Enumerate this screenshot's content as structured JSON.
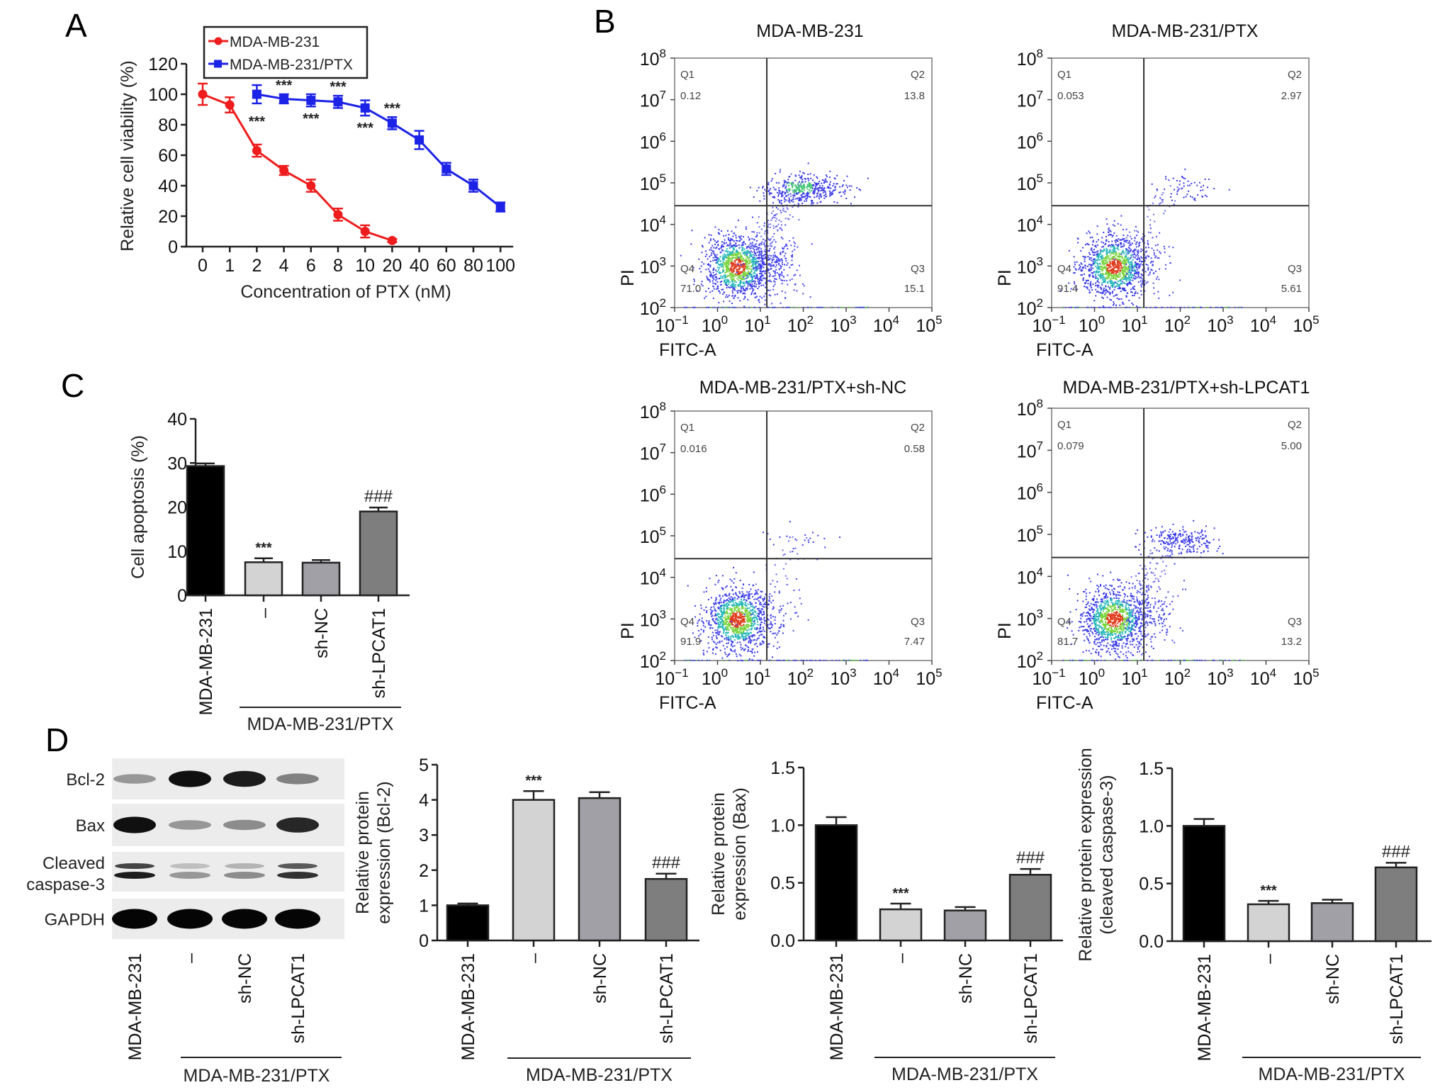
{
  "figure": {
    "panel_letters": [
      "A",
      "B",
      "C",
      "D"
    ],
    "group_bracket_label": "MDA-MB-231/PTX",
    "colors": {
      "red": "#ee1c1c",
      "blue": "#1c22e6",
      "bar_black": "#000000",
      "bar_light": "#d3d3d3",
      "bar_mid": "#a0a0a6",
      "bar_dark": "#7e7e7e"
    }
  },
  "chart_data": [
    {
      "id": "A",
      "type": "line",
      "title": "",
      "xlabel": "Concentration of PTX (nM)",
      "ylabel": "Relative cell viability (%)",
      "categories": [
        "0",
        "1",
        "2",
        "4",
        "6",
        "8",
        "10",
        "20",
        "40",
        "60",
        "80",
        "100"
      ],
      "ylim": [
        0,
        120
      ],
      "yticks": [
        0,
        20,
        40,
        60,
        80,
        100,
        120
      ],
      "legend": {
        "placement": "top",
        "entries": [
          "MDA-MB-231",
          "MDA-MB-231/PTX"
        ]
      },
      "series": [
        {
          "name": "MDA-MB-231",
          "color": "#ee1c1c",
          "marker": "circle",
          "x": [
            "0",
            "1",
            "2",
            "4",
            "6",
            "8",
            "10",
            "20"
          ],
          "values": [
            100,
            93,
            63,
            50,
            40,
            21,
            10,
            4
          ],
          "errors": [
            7,
            5,
            4,
            3,
            4,
            4,
            4,
            1
          ]
        },
        {
          "name": "MDA-MB-231/PTX",
          "color": "#1c22e6",
          "marker": "square",
          "x": [
            "2",
            "4",
            "6",
            "8",
            "10",
            "20",
            "40",
            "60",
            "80",
            "100"
          ],
          "values": [
            100,
            97,
            96,
            95,
            91,
            81,
            70,
            51,
            40,
            26
          ],
          "errors": [
            6,
            3,
            4,
            4,
            5,
            4,
            6,
            4,
            4,
            3
          ]
        }
      ],
      "annotations": [
        {
          "text": "***",
          "x": "2",
          "position": "below"
        },
        {
          "text": "***",
          "x": "4",
          "position": "above"
        },
        {
          "text": "***",
          "x": "6",
          "position": "below"
        },
        {
          "text": "***",
          "x": "8",
          "position": "above"
        },
        {
          "text": "***",
          "x": "10",
          "position": "below"
        },
        {
          "text": "***",
          "x": "20",
          "position": "above"
        }
      ]
    },
    {
      "id": "B",
      "type": "scatter",
      "subtype": "flow-cytometry-quadrant",
      "xlabel": "FITC-A",
      "ylabel": "PI",
      "x_scale": "log",
      "y_scale": "log",
      "xticks": [
        "10^-1",
        "10^0",
        "10^1",
        "10^2",
        "10^3",
        "10^4",
        "10^5"
      ],
      "yticks": [
        "10^2",
        "10^3",
        "10^4",
        "10^5",
        "10^6",
        "10^7",
        "10^8"
      ],
      "xlim_log10": [
        -1,
        5
      ],
      "ylim_log10": [
        2,
        8
      ],
      "gate_log10": {
        "x": 1.15,
        "y": 4.45
      },
      "plots": [
        {
          "title": "MDA-MB-231",
          "quadrants": {
            "Q1": "0.12",
            "Q2": "13.8",
            "Q3": "15.1",
            "Q4": "71.0"
          },
          "late_cluster": "strong"
        },
        {
          "title": "MDA-MB-231/PTX",
          "quadrants": {
            "Q1": "0.053",
            "Q2": "2.97",
            "Q3": "5.61",
            "Q4": "91.4"
          },
          "late_cluster": "weak"
        },
        {
          "title": "MDA-MB-231/PTX+sh-NC",
          "quadrants": {
            "Q1": "0.016",
            "Q2": "0.58",
            "Q3": "7.47",
            "Q4": "91.9"
          },
          "late_cluster": "sparse"
        },
        {
          "title": "MDA-MB-231/PTX+sh-LPCAT1",
          "quadrants": {
            "Q1": "0.079",
            "Q2": "5.00",
            "Q3": "13.2",
            "Q4": "81.7"
          },
          "late_cluster": "moderate"
        }
      ]
    },
    {
      "id": "C",
      "type": "bar",
      "ylabel": "Cell apoptosis (%)",
      "categories": [
        "MDA-MB-231",
        "–",
        "sh-NC",
        "sh-LPCAT1"
      ],
      "values": [
        29.3,
        7.5,
        7.4,
        19.0
      ],
      "errors": [
        0.6,
        0.9,
        0.6,
        0.9
      ],
      "ylim": [
        0,
        40
      ],
      "yticks": [
        0,
        10,
        20,
        30,
        40
      ],
      "annotations": [
        "",
        "***",
        "",
        "###"
      ],
      "group_bracket": {
        "label": "MDA-MB-231/PTX",
        "spans": [
          "–",
          "sh-NC",
          "sh-LPCAT1"
        ]
      }
    },
    {
      "id": "D-Bcl-2",
      "type": "bar",
      "ylabel": [
        "Relative protein",
        "expression (Bcl-2)"
      ],
      "categories": [
        "MDA-MB-231",
        "–",
        "sh-NC",
        "sh-LPCAT1"
      ],
      "values": [
        1.0,
        4.0,
        4.05,
        1.75
      ],
      "errors": [
        0.05,
        0.25,
        0.17,
        0.15
      ],
      "ylim": [
        0,
        5
      ],
      "yticks": [
        "0",
        "1",
        "2",
        "3",
        "4",
        "5"
      ],
      "annotations": [
        "",
        "***",
        "",
        "###"
      ],
      "group_bracket": {
        "label": "MDA-MB-231/PTX",
        "spans": [
          "–",
          "sh-NC",
          "sh-LPCAT1"
        ]
      }
    },
    {
      "id": "D-Bax",
      "type": "bar",
      "ylabel": [
        "Relative protein",
        "expression (Bax)"
      ],
      "categories": [
        "MDA-MB-231",
        "–",
        "sh-NC",
        "sh-LPCAT1"
      ],
      "values": [
        1.0,
        0.27,
        0.26,
        0.57
      ],
      "errors": [
        0.07,
        0.05,
        0.03,
        0.05
      ],
      "ylim": [
        0,
        1.5
      ],
      "yticks": [
        "0.0",
        "0.5",
        "1.0",
        "1.5"
      ],
      "annotations": [
        "",
        "***",
        "",
        "###"
      ],
      "group_bracket": {
        "label": "MDA-MB-231/PTX",
        "spans": [
          "–",
          "sh-NC",
          "sh-LPCAT1"
        ]
      }
    },
    {
      "id": "D-caspase-3",
      "type": "bar",
      "ylabel": [
        "Relative protein expression",
        "(cleaved caspase-3)"
      ],
      "categories": [
        "MDA-MB-231",
        "–",
        "sh-NC",
        "sh-LPCAT1"
      ],
      "values": [
        1.0,
        0.32,
        0.33,
        0.64
      ],
      "errors": [
        0.06,
        0.03,
        0.03,
        0.04
      ],
      "ylim": [
        0,
        1.5
      ],
      "yticks": [
        "0.0",
        "0.5",
        "1.0",
        "1.5"
      ],
      "annotations": [
        "",
        "***",
        "",
        "###"
      ],
      "group_bracket": {
        "label": "MDA-MB-231/PTX",
        "spans": [
          "–",
          "sh-NC",
          "sh-LPCAT1"
        ]
      }
    }
  ],
  "western_blot": {
    "rows": [
      {
        "label": [
          "Bcl-2"
        ],
        "intensities": [
          0.35,
          0.95,
          0.9,
          0.45
        ]
      },
      {
        "label": [
          "Bax"
        ],
        "intensities": [
          0.95,
          0.35,
          0.4,
          0.85
        ]
      },
      {
        "label": [
          "Cleaved",
          "caspase-3"
        ],
        "intensities": [
          0.9,
          0.35,
          0.4,
          0.8
        ]
      },
      {
        "label": [
          "GAPDH"
        ],
        "intensities": [
          1.0,
          1.0,
          1.0,
          1.0
        ]
      }
    ],
    "lanes": [
      "MDA-MB-231",
      "–",
      "sh-NC",
      "sh-LPCAT1"
    ]
  }
}
